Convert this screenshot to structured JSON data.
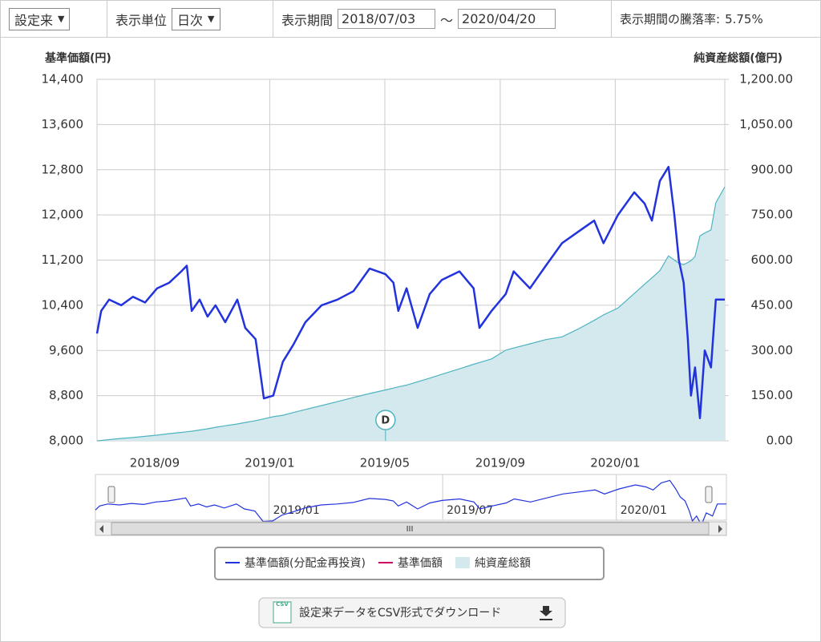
{
  "controls": {
    "range": "設定来",
    "unit_label": "表示単位",
    "unit": "日次",
    "period_label": "表示期間",
    "from": "2018/07/03",
    "sep": "～",
    "to": "2020/04/20",
    "change_label": "表示期間の騰落率:",
    "change": "5.75%"
  },
  "chart_data": {
    "type": "line",
    "y_label": "基準価額(円)",
    "y2_label": "純資産総額(億円)",
    "x": [
      2018.5,
      2018.512,
      2018.535,
      2018.57,
      2018.604,
      2018.639,
      2018.674,
      2018.709,
      2018.744,
      2018.76,
      2018.774,
      2018.797,
      2018.82,
      2018.843,
      2018.871,
      2018.906,
      2018.929,
      2018.959,
      2018.983,
      2019.01,
      2019.038,
      2019.068,
      2019.103,
      2019.15,
      2019.196,
      2019.242,
      2019.289,
      2019.335,
      2019.358,
      2019.372,
      2019.396,
      2019.428,
      2019.463,
      2019.498,
      2019.549,
      2019.59,
      2019.607,
      2019.642,
      2019.683,
      2019.706,
      2019.753,
      2019.799,
      2019.846,
      2019.892,
      2019.939,
      2019.966,
      2020.008,
      2020.055,
      2020.085,
      2020.106,
      2020.129,
      2020.154,
      2020.171,
      2020.184,
      2020.198,
      2020.21,
      2020.219,
      2020.231,
      2020.245,
      2020.259,
      2020.277,
      2020.291,
      2020.317
    ],
    "series": [
      {
        "name": "基準価額(分配金再投資)",
        "color": "#2233dd",
        "kind": "line",
        "axis": "y",
        "visible": true,
        "values": [
          9900,
          10300,
          10500,
          10400,
          10550,
          10450,
          10700,
          10800,
          11000,
          11100,
          10300,
          10500,
          10200,
          10400,
          10100,
          10500,
          10000,
          9800,
          8750,
          8800,
          9400,
          9700,
          10100,
          10400,
          10500,
          10650,
          11050,
          10950,
          10800,
          10300,
          10700,
          10000,
          10600,
          10850,
          11000,
          10700,
          10000,
          10300,
          10600,
          11000,
          10700,
          11100,
          11500,
          11700,
          11900,
          11500,
          12000,
          12400,
          12200,
          11900,
          12600,
          12850,
          12000,
          11200,
          10800,
          9800,
          8800,
          9300,
          8400,
          9600,
          9300,
          10500,
          10500
        ]
      },
      {
        "name": "基準価額",
        "color": "#cc0066",
        "kind": "line",
        "axis": "y",
        "visible": false,
        "values": [
          null,
          null,
          null,
          null,
          null,
          null,
          null,
          null,
          null,
          null,
          null,
          null,
          null,
          null,
          null,
          null,
          null,
          null,
          null,
          null,
          null,
          null,
          null,
          null,
          null,
          null,
          null,
          null,
          null,
          null,
          null,
          null,
          null,
          null,
          null,
          null,
          null,
          null,
          null,
          null,
          null,
          null,
          null,
          null,
          null,
          null,
          null,
          null,
          null,
          null,
          null,
          null,
          null,
          null,
          null,
          null,
          null,
          null,
          null,
          null,
          null,
          null,
          null
        ]
      },
      {
        "name": "純資産総額",
        "color": "#d3e9ee",
        "line_color": "#4fb3c0",
        "kind": "area",
        "axis": "y2",
        "visible": true,
        "values": [
          0,
          1,
          4,
          8,
          11,
          15,
          19,
          24,
          28,
          30,
          32,
          36,
          40,
          45,
          50,
          56,
          61,
          67,
          73,
          80,
          85,
          94,
          104,
          117,
          130,
          144,
          157,
          169,
          175,
          179,
          185,
          196,
          208,
          221,
          239,
          254,
          260,
          272,
          301,
          308,
          322,
          336,
          345,
          371,
          400,
          418,
          441,
          489,
          520,
          541,
          565,
          614,
          600,
          590,
          585,
          592,
          598,
          612,
          680,
          690,
          700,
          790,
          843
        ]
      }
    ],
    "xlim": [
      2018.5,
      2020.317
    ],
    "xticks": [
      {
        "value": 2018.667,
        "label": "2018/09"
      },
      {
        "value": 2019.0,
        "label": "2019/01"
      },
      {
        "value": 2019.333,
        "label": "2019/05"
      },
      {
        "value": 2019.667,
        "label": "2019/09"
      },
      {
        "value": 2020.0,
        "label": "2020/01"
      }
    ],
    "ylim": [
      8000,
      14400
    ],
    "yticks": [
      {
        "value": 8000,
        "label": "8,000"
      },
      {
        "value": 8800,
        "label": "8,800"
      },
      {
        "value": 9600,
        "label": "9,600"
      },
      {
        "value": 10400,
        "label": "10,400"
      },
      {
        "value": 11200,
        "label": "11,200"
      },
      {
        "value": 12000,
        "label": "12,000"
      },
      {
        "value": 12800,
        "label": "12,800"
      },
      {
        "value": 13600,
        "label": "13,600"
      },
      {
        "value": 14400,
        "label": "14,400"
      }
    ],
    "y2lim": [
      0,
      1200
    ],
    "y2ticks": [
      {
        "value": 0,
        "label": "0.00"
      },
      {
        "value": 150,
        "label": "150.00"
      },
      {
        "value": 300,
        "label": "300.00"
      },
      {
        "value": 450,
        "label": "450.00"
      },
      {
        "value": 600,
        "label": "600.00"
      },
      {
        "value": 750,
        "label": "750.00"
      },
      {
        "value": 900,
        "label": "900.00"
      },
      {
        "value": 1050,
        "label": "1,050.00"
      },
      {
        "value": 1200,
        "label": "1,200.00"
      }
    ],
    "grid": true,
    "annotations": [
      {
        "x": 2019.335,
        "label": "D"
      }
    ]
  },
  "navigator": {
    "xticks": [
      {
        "value": 2019.0,
        "label": "2019/01"
      },
      {
        "value": 2019.5,
        "label": "2019/07"
      },
      {
        "value": 2020.0,
        "label": "2020/01"
      }
    ],
    "scroll": "III"
  },
  "download": {
    "badge": "CSV",
    "text": "設定来データをCSV形式でダウンロード"
  }
}
